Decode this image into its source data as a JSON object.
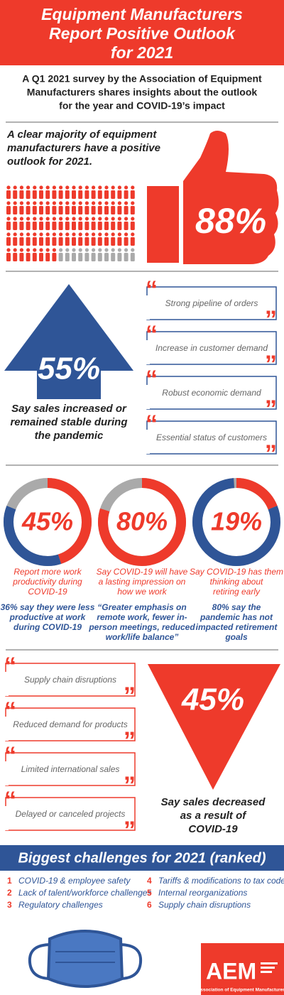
{
  "header": {
    "title": [
      "Equipment Manufacturers",
      "Report Positive Outlook",
      "for 2021"
    ]
  },
  "intro": [
    "A Q1 2021 survey by the Association of Equipment",
    "Manufacturers shares insights about the outlook",
    "for the year and COVID-19’s impact"
  ],
  "outlook": {
    "text": [
      "A clear majority of equipment",
      "manufacturers have a positive",
      "outlook for 2021."
    ],
    "percent": 88,
    "label": "88%"
  },
  "sales_up": {
    "label": "55%",
    "caption": [
      "Say sales increased or",
      "remained stable during",
      "the pandemic"
    ],
    "reasons": [
      "Strong pipeline of orders",
      "Increase in customer demand",
      "Robust economic demand",
      "Essential status of customers"
    ]
  },
  "workforce": [
    {
      "percent": 45,
      "label": "45%",
      "caption": [
        "Report more work",
        "productivity during",
        "COVID-19"
      ],
      "detail_percent": 36,
      "detail": [
        "36% say they were less",
        "productive at work",
        "during COVID-19"
      ]
    },
    {
      "percent": 80,
      "label": "80%",
      "caption": [
        "Say COVID-19 will have",
        "a lasting impression on",
        "how we work"
      ],
      "detail": [
        "“Greater emphasis on",
        "remote work, fewer in-",
        "person meetings, reduced",
        "work/life balance”"
      ]
    },
    {
      "percent": 19,
      "label": "19%",
      "caption": [
        "Say COVID-19 has them",
        "thinking about",
        "retiring early"
      ],
      "detail_percent": 80,
      "detail": [
        "80% say the",
        "pandemic has not",
        "impacted retirement",
        "goals"
      ]
    }
  ],
  "sales_down": {
    "label": "45%",
    "caption": [
      "Say sales decreased",
      "as a result of",
      "COVID-19"
    ],
    "reasons": [
      "Supply chain disruptions",
      "Reduced demand for products",
      "Limited international sales",
      "Delayed or canceled projects"
    ]
  },
  "challenges": {
    "title": "Biggest challenges for 2021 (ranked)",
    "items": [
      {
        "rank": 1,
        "text": "COVID-19 & employee safety"
      },
      {
        "rank": 2,
        "text": "Lack of talent/workforce challenges"
      },
      {
        "rank": 3,
        "text": "Regulatory challenges"
      },
      {
        "rank": 4,
        "text": "Tariffs & modifications to tax code"
      },
      {
        "rank": 5,
        "text": "Internal reorganizations"
      },
      {
        "rank": 6,
        "text": "Supply chain disruptions"
      }
    ]
  },
  "logo": {
    "name": "AEM",
    "tagline": "Association of Equipment Manufacturers"
  }
}
